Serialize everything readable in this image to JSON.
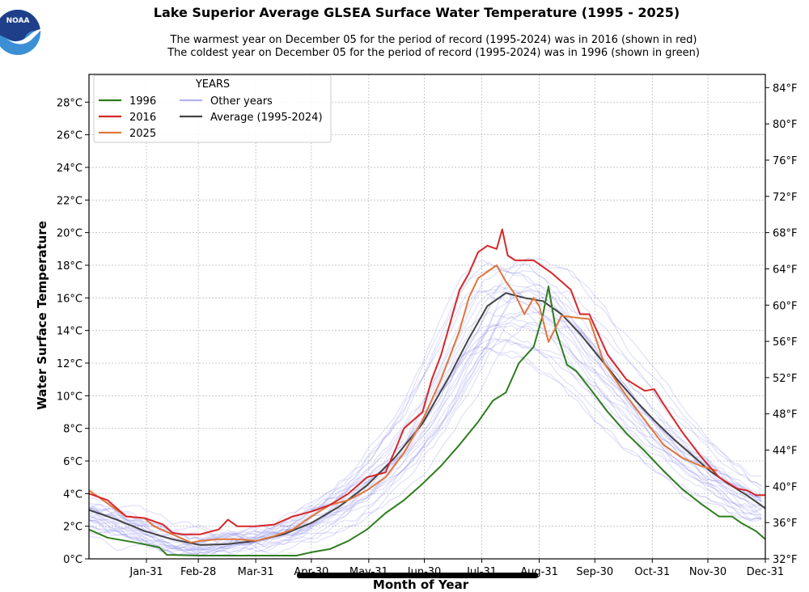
{
  "header": {
    "logo_text": "NOAA",
    "title": "Lake Superior Average GLSEA Surface Water Temperature (1995 - 2025)",
    "subtitle_line1": "The warmest year on December 05 for the period of record (1995-2024) was in 2016 (shown in red)",
    "subtitle_line2": "The coldest year on December 05 for the period of record (1995-2024) was in 1996 (shown in green)"
  },
  "chart_data": {
    "type": "line",
    "title": "Lake Superior Average GLSEA Surface Water Temperature (1995 - 2025)",
    "xlabel": "Month of Year",
    "ylabel": "Water Surface Temperature",
    "ylabel_right": "",
    "xlim_day_of_year": [
      0,
      365
    ],
    "ylim": [
      0,
      29.7
    ],
    "grid": true,
    "x_ticks": [
      {
        "label": "Jan-31",
        "day": 31
      },
      {
        "label": "Feb-28",
        "day": 59
      },
      {
        "label": "Mar-31",
        "day": 90
      },
      {
        "label": "Apr-30",
        "day": 120
      },
      {
        "label": "May-31",
        "day": 151
      },
      {
        "label": "Jun-30",
        "day": 181
      },
      {
        "label": "Jul-31",
        "day": 212
      },
      {
        "label": "Aug-31",
        "day": 243
      },
      {
        "label": "Sep-30",
        "day": 273
      },
      {
        "label": "Oct-31",
        "day": 304
      },
      {
        "label": "Nov-30",
        "day": 334
      },
      {
        "label": "Dec-31",
        "day": 365
      }
    ],
    "y_ticks_c": [
      {
        "label": "0°C",
        "value": 0
      },
      {
        "label": "2°C",
        "value": 2
      },
      {
        "label": "4°C",
        "value": 4
      },
      {
        "label": "6°C",
        "value": 6
      },
      {
        "label": "8°C",
        "value": 8
      },
      {
        "label": "10°C",
        "value": 10
      },
      {
        "label": "12°C",
        "value": 12
      },
      {
        "label": "14°C",
        "value": 14
      },
      {
        "label": "16°C",
        "value": 16
      },
      {
        "label": "18°C",
        "value": 18
      },
      {
        "label": "20°C",
        "value": 20
      },
      {
        "label": "22°C",
        "value": 22
      },
      {
        "label": "24°C",
        "value": 24
      },
      {
        "label": "26°C",
        "value": 26
      },
      {
        "label": "28°C",
        "value": 28
      }
    ],
    "y_ticks_f": [
      {
        "label": "32°F",
        "value": 32
      },
      {
        "label": "36°F",
        "value": 36
      },
      {
        "label": "40°F",
        "value": 40
      },
      {
        "label": "44°F",
        "value": 44
      },
      {
        "label": "48°F",
        "value": 48
      },
      {
        "label": "52°F",
        "value": 52
      },
      {
        "label": "56°F",
        "value": 56
      },
      {
        "label": "60°F",
        "value": 60
      },
      {
        "label": "64°F",
        "value": 64
      },
      {
        "label": "68°F",
        "value": 68
      },
      {
        "label": "72°F",
        "value": 72
      },
      {
        "label": "76°F",
        "value": 76
      },
      {
        "label": "80°F",
        "value": 80
      },
      {
        "label": "84°F",
        "value": 84
      }
    ],
    "legend": {
      "title": "YEARS",
      "placement": "top-left",
      "entries": [
        {
          "label": "1996",
          "color": "#2e7d1e"
        },
        {
          "label": "2016",
          "color": "#d62728"
        },
        {
          "label": "2025",
          "color": "#e0763c"
        },
        {
          "label": "Other years",
          "color": "#b3b3f0"
        },
        {
          "label": "Average (1995-2024)",
          "color": "#444444"
        }
      ]
    },
    "series": [
      {
        "name": "1996",
        "color": "#2e7d1e",
        "x": [
          0,
          10,
          25,
          38,
          42,
          60,
          90,
          112,
          120,
          130,
          140,
          150,
          160,
          170,
          180,
          190,
          200,
          210,
          218,
          225,
          232,
          240,
          245,
          248,
          252,
          258,
          263,
          270,
          280,
          290,
          300,
          310,
          320,
          330,
          340,
          347,
          352,
          360,
          365
        ],
        "y": [
          1.8,
          1.3,
          1.0,
          0.7,
          0.25,
          0.2,
          0.2,
          0.2,
          0.4,
          0.6,
          1.1,
          1.8,
          2.8,
          3.6,
          4.6,
          5.7,
          7.0,
          8.4,
          9.7,
          10.2,
          12.0,
          13.0,
          15.0,
          16.7,
          14.0,
          11.9,
          11.5,
          10.5,
          9.0,
          7.7,
          6.6,
          5.4,
          4.3,
          3.4,
          2.6,
          2.6,
          2.2,
          1.7,
          1.2
        ]
      },
      {
        "name": "2016",
        "color": "#d62728",
        "x": [
          0,
          10,
          20,
          30,
          40,
          45,
          50,
          60,
          70,
          75,
          80,
          90,
          100,
          110,
          120,
          130,
          140,
          150,
          160,
          165,
          170,
          175,
          180,
          185,
          190,
          195,
          200,
          205,
          210,
          215,
          220,
          223,
          226,
          230,
          240,
          250,
          260,
          265,
          270,
          280,
          290,
          300,
          305,
          310,
          320,
          330,
          340,
          350,
          355,
          360,
          365
        ],
        "y": [
          4.0,
          3.6,
          2.6,
          2.5,
          2.1,
          1.6,
          1.5,
          1.5,
          1.8,
          2.4,
          2.0,
          2.0,
          2.1,
          2.6,
          2.9,
          3.3,
          4.0,
          5.0,
          5.3,
          6.6,
          8.0,
          8.5,
          9.0,
          11.0,
          12.5,
          14.5,
          16.5,
          17.5,
          18.8,
          19.2,
          19.0,
          20.2,
          18.6,
          18.3,
          18.3,
          17.5,
          16.5,
          15.0,
          15.0,
          12.5,
          11.0,
          10.3,
          10.4,
          9.5,
          7.8,
          6.3,
          5.0,
          4.3,
          4.2,
          3.9,
          3.9
        ]
      },
      {
        "name": "2025",
        "color": "#e0763c",
        "x": [
          0,
          10,
          20,
          30,
          35,
          45,
          55,
          60,
          70,
          80,
          90,
          100,
          110,
          120,
          130,
          140,
          150,
          160,
          170,
          180,
          190,
          200,
          205,
          210,
          215,
          220,
          225,
          230,
          235,
          240,
          243,
          248,
          255,
          262,
          270,
          278,
          290,
          300,
          310,
          320,
          330,
          339
        ],
        "y": [
          4.2,
          3.4,
          2.6,
          2.5,
          2.0,
          1.5,
          1.0,
          1.1,
          1.2,
          1.2,
          1.1,
          1.4,
          1.8,
          2.6,
          3.3,
          3.6,
          4.2,
          5.0,
          6.5,
          8.5,
          11.0,
          14.0,
          16.0,
          17.2,
          17.6,
          18.0,
          17.0,
          16.2,
          15.0,
          16.0,
          15.5,
          13.3,
          14.9,
          14.8,
          14.7,
          12.0,
          10.0,
          8.5,
          7.0,
          6.2,
          5.7,
          5.4
        ]
      },
      {
        "name": "Average (1995-2024)",
        "color": "#444444",
        "x": [
          0,
          15,
          30,
          45,
          60,
          75,
          90,
          105,
          120,
          135,
          150,
          165,
          180,
          195,
          205,
          215,
          225,
          235,
          245,
          255,
          265,
          275,
          285,
          295,
          305,
          315,
          325,
          335,
          345,
          355,
          365
        ],
        "y": [
          3.0,
          2.4,
          1.7,
          1.2,
          0.85,
          0.9,
          1.1,
          1.5,
          2.2,
          3.2,
          4.5,
          6.2,
          8.3,
          11.3,
          13.5,
          15.5,
          16.3,
          16.0,
          15.8,
          15.0,
          13.8,
          12.4,
          11.0,
          9.7,
          8.5,
          7.4,
          6.4,
          5.4,
          4.6,
          3.9,
          3.1
        ]
      }
    ],
    "other_years_note": "Faint blue lines for each remaining year 1995-2024 spread around the average"
  }
}
